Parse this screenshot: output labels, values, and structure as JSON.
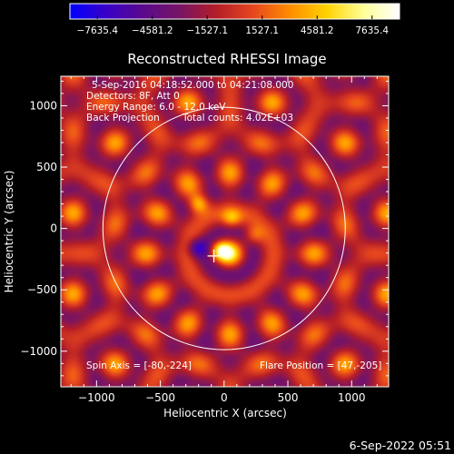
{
  "chart_data": {
    "type": "heatmap",
    "title": "Reconstructed RHESSI Image",
    "xlabel": "Heliocentric X (arcsec)",
    "ylabel": "Heliocentric Y (arcsec)",
    "xlim": [
      -1280,
      1290
    ],
    "ylim": [
      -1290,
      1240
    ],
    "xticks": [
      -1000,
      -500,
      0,
      500,
      1000
    ],
    "yticks": [
      -1000,
      -500,
      0,
      500,
      1000
    ],
    "xtick_labels": [
      "−1000",
      "−500",
      "0",
      "500",
      "1000"
    ],
    "ytick_labels": [
      "−1000",
      "−500",
      "0",
      "500",
      "1000"
    ],
    "colorbar": {
      "min": -7635.4,
      "max": 7635.4,
      "tick_labels": [
        "−7635.4",
        "−4581.2",
        "−1527.1",
        "1527.1",
        "4581.2",
        "7635.4"
      ],
      "stops": [
        "#0000ff",
        "#3a00c8",
        "#5a0a8c",
        "#781464",
        "#b41e28",
        "#e6461e",
        "#ff8c00",
        "#ffd200",
        "#ffff96",
        "#ffffff"
      ]
    },
    "annotations": [
      "5-Sep-2016 04:18:52.000 to 04:21:08.000",
      "Detectors: 8F, Att 0",
      "Energy Range: 6.0 - 12.0 keV",
      "Back Projection",
      "Total counts: 4.02E+03"
    ],
    "spin_axis": {
      "label": "Spin Axis = [-80,-224]",
      "x": -80,
      "y": -224
    },
    "flare_position": {
      "label": "Flare Position = [47,-205]",
      "x": 47,
      "y": -205
    },
    "solar_limb_radius": 950,
    "bright_sources": [
      {
        "x": -30,
        "y": -180,
        "value": 7600
      },
      {
        "x": -200,
        "y": 200,
        "value": 6500
      },
      {
        "x": 60,
        "y": 80,
        "value": 5200
      },
      {
        "x": 230,
        "y": -60,
        "value": 4500
      },
      {
        "x": -210,
        "y": -160,
        "value": -6000
      }
    ]
  },
  "footer": {
    "timestamp": "6-Sep-2022 05:51"
  }
}
